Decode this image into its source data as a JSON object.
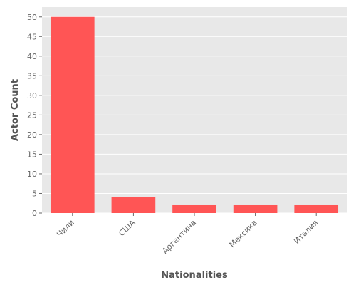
{
  "chart_data": {
    "type": "bar",
    "title": "",
    "xlabel": "Nationalities",
    "ylabel": "Actor Count",
    "categories": [
      "Чили",
      "США",
      "Аргентина",
      "Мексика",
      "Италия"
    ],
    "values": [
      50,
      4,
      2,
      2,
      2
    ],
    "ylim": [
      0,
      52.5
    ],
    "yticks": [
      0,
      5,
      10,
      15,
      20,
      25,
      30,
      35,
      40,
      45,
      50
    ],
    "grid": true,
    "legend": "none",
    "colors": {
      "bar": "#ff5555",
      "plot_background": "#e8e8e8",
      "grid": "#ffffff",
      "text": "#666666"
    }
  }
}
